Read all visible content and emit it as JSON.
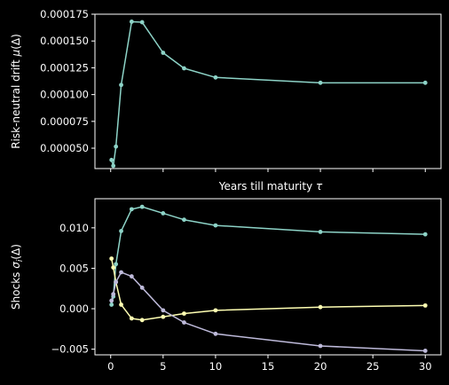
{
  "chart_data": [
    {
      "type": "line",
      "title": "",
      "xlabel": "Years till maturity τ",
      "ylabel": "Risk-neutral drift μ(Δ)",
      "xlim": [
        -1.5,
        31.5
      ],
      "ylim": [
        3.1e-05,
        0.000175
      ],
      "xticks": [
        0,
        5,
        10,
        15,
        20,
        25,
        30
      ],
      "show_xtick_labels": false,
      "yticks": [
        5e-05,
        7.5e-05,
        0.0001,
        0.000125,
        0.00015,
        0.000175
      ],
      "ytick_labels": [
        "0.000050",
        "0.000075",
        "0.000100",
        "0.000125",
        "0.000150",
        "0.000175"
      ],
      "grid": false,
      "series": [
        {
          "color": "#8dd3c7",
          "x": [
            0.08,
            0.25,
            0.5,
            1,
            2,
            3,
            5,
            7,
            10,
            20,
            30
          ],
          "y": [
            3.9e-05,
            3.35e-05,
            5.15e-05,
            0.000109,
            0.000168,
            0.0001675,
            0.000139,
            0.0001245,
            0.000116,
            0.000111,
            0.000111
          ]
        }
      ]
    },
    {
      "type": "line",
      "title": "",
      "xlabel": "",
      "ylabel": "Shocks σ_i(Δ)",
      "xlim": [
        -1.5,
        31.5
      ],
      "ylim": [
        -0.0057,
        0.0136
      ],
      "xticks": [
        0,
        5,
        10,
        15,
        20,
        25,
        30
      ],
      "xtick_labels": [
        "0",
        "5",
        "10",
        "15",
        "20",
        "25",
        "30"
      ],
      "yticks": [
        -0.005,
        0.0,
        0.005,
        0.01
      ],
      "ytick_labels": [
        "−0.005",
        "0.000",
        "0.005",
        "0.010"
      ],
      "grid": false,
      "series": [
        {
          "color": "#8dd3c7",
          "x": [
            0.08,
            0.25,
            0.5,
            1,
            2,
            3,
            5,
            7,
            10,
            20,
            30
          ],
          "y": [
            0.0005,
            0.0015,
            0.0055,
            0.0096,
            0.0123,
            0.0126,
            0.0118,
            0.011,
            0.0103,
            0.0095,
            0.0092
          ]
        },
        {
          "color": "#ffffb3",
          "x": [
            0.08,
            0.25,
            0.5,
            1,
            2,
            3,
            5,
            7,
            10,
            20,
            30
          ],
          "y": [
            0.0062,
            0.0051,
            0.0033,
            0.0005,
            -0.0012,
            -0.0014,
            -0.001,
            -0.0006,
            -0.0002,
            0.0002,
            0.0004
          ]
        },
        {
          "color": "#bebada",
          "x": [
            0.08,
            0.25,
            0.5,
            1,
            2,
            3,
            5,
            7,
            10,
            20,
            30
          ],
          "y": [
            0.001,
            0.0018,
            0.0033,
            0.0045,
            0.004,
            0.0026,
            -0.0002,
            -0.0017,
            -0.0031,
            -0.0046,
            -0.0052
          ]
        }
      ]
    }
  ]
}
